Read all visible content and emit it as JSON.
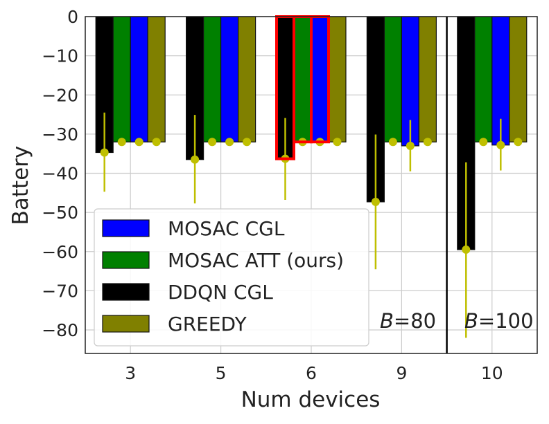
{
  "chart_data": {
    "type": "bar",
    "xlabel": "Num devices",
    "ylabel": "Battery",
    "ylim": [
      -86,
      0
    ],
    "yticks": [
      0,
      -10,
      -20,
      -30,
      -40,
      -50,
      -60,
      -70,
      -80
    ],
    "ytick_labels": [
      "0",
      "−10",
      "−20",
      "−30",
      "−40",
      "−50",
      "−60",
      "−70",
      "−80"
    ],
    "categories": [
      "3",
      "5",
      "6",
      "9",
      "10"
    ],
    "series_order": [
      "DDQN CGL",
      "MOSAC ATT (ours)",
      "MOSAC CGL",
      "GREEDY"
    ],
    "series": [
      {
        "name": "DDQN CGL",
        "color": "#000000",
        "values": [
          -34.7,
          -36.5,
          -36.3,
          -47.3,
          -59.5
        ],
        "err_low": [
          -44.7,
          -47.7,
          -46.8,
          -64.5,
          -82.0
        ],
        "err_high": [
          -24.5,
          -25.1,
          -25.9,
          -30.1,
          -37.2
        ]
      },
      {
        "name": "MOSAC ATT (ours)",
        "color": "#008000",
        "values": [
          -32.0,
          -32.0,
          -32.0,
          -32.0,
          -32.0
        ],
        "err_low": [
          -32.0,
          -32.0,
          -32.0,
          -32.0,
          -32.0
        ],
        "err_high": [
          -32.0,
          -32.0,
          -32.0,
          -32.0,
          -32.0
        ]
      },
      {
        "name": "MOSAC CGL",
        "color": "#0000ff",
        "values": [
          -32.0,
          -32.0,
          -32.0,
          -33.0,
          -32.8
        ],
        "err_low": [
          -32.0,
          -32.0,
          -32.0,
          -39.5,
          -39.3
        ],
        "err_high": [
          -32.0,
          -32.0,
          -32.0,
          -26.4,
          -26.1
        ]
      },
      {
        "name": "GREEDY",
        "color": "#808000",
        "values": [
          -32.0,
          -32.0,
          -32.0,
          -32.0,
          -32.0
        ],
        "err_low": [
          -32.0,
          -32.0,
          -32.0,
          -32.0,
          -32.0
        ],
        "err_high": [
          -32.0,
          -32.0,
          -32.0,
          -32.0,
          -32.0
        ]
      }
    ],
    "legend": {
      "placement": "lower-left",
      "entries": [
        {
          "label": "MOSAC CGL",
          "color": "#0000ff"
        },
        {
          "label": "MOSAC ATT (ours)",
          "color": "#008000"
        },
        {
          "label": "DDQN CGL",
          "color": "#000000"
        },
        {
          "label": "GREEDY",
          "color": "#808000"
        }
      ]
    },
    "highlight": {
      "category": "6",
      "color": "#ff0000"
    },
    "errorbar_color": "#bfbf00",
    "annotations": [
      {
        "italic": "B",
        "rest": "=80"
      },
      {
        "italic": "B",
        "rest": "=100"
      }
    ],
    "divider_between": [
      "9",
      "10"
    ],
    "grid": true
  }
}
